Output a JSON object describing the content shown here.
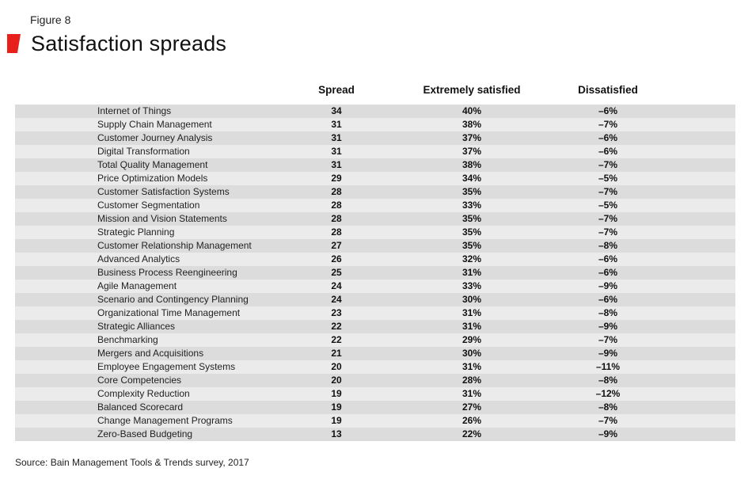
{
  "figure_label": "Figure 8",
  "title": "Satisfaction spreads",
  "accent_color": "#e8201c",
  "source": "Source: Bain Management Tools & Trends survey, 2017",
  "chart_data": {
    "type": "table",
    "title": "Satisfaction spreads",
    "columns": [
      "Spread",
      "Extremely satisfied",
      "Dissatisfied"
    ],
    "rows": [
      {
        "tool": "Internet of Things",
        "spread": "34",
        "extremely_satisfied": "40%",
        "dissatisfied": "–6%"
      },
      {
        "tool": "Supply Chain Management",
        "spread": "31",
        "extremely_satisfied": "38%",
        "dissatisfied": "–7%"
      },
      {
        "tool": "Customer Journey Analysis",
        "spread": "31",
        "extremely_satisfied": "37%",
        "dissatisfied": "–6%"
      },
      {
        "tool": "Digital Transformation",
        "spread": "31",
        "extremely_satisfied": "37%",
        "dissatisfied": "–6%"
      },
      {
        "tool": "Total Quality Management",
        "spread": "31",
        "extremely_satisfied": "38%",
        "dissatisfied": "–7%"
      },
      {
        "tool": "Price Optimization Models",
        "spread": "29",
        "extremely_satisfied": "34%",
        "dissatisfied": "–5%"
      },
      {
        "tool": "Customer Satisfaction Systems",
        "spread": "28",
        "extremely_satisfied": "35%",
        "dissatisfied": "–7%"
      },
      {
        "tool": "Customer Segmentation",
        "spread": "28",
        "extremely_satisfied": "33%",
        "dissatisfied": "–5%"
      },
      {
        "tool": "Mission and Vision Statements",
        "spread": "28",
        "extremely_satisfied": "35%",
        "dissatisfied": "–7%"
      },
      {
        "tool": "Strategic Planning",
        "spread": "28",
        "extremely_satisfied": "35%",
        "dissatisfied": "–7%"
      },
      {
        "tool": "Customer Relationship Management",
        "spread": "27",
        "extremely_satisfied": "35%",
        "dissatisfied": "–8%"
      },
      {
        "tool": "Advanced Analytics",
        "spread": "26",
        "extremely_satisfied": "32%",
        "dissatisfied": "–6%"
      },
      {
        "tool": "Business Process Reengineering",
        "spread": "25",
        "extremely_satisfied": "31%",
        "dissatisfied": "–6%"
      },
      {
        "tool": "Agile Management",
        "spread": "24",
        "extremely_satisfied": "33%",
        "dissatisfied": "–9%"
      },
      {
        "tool": "Scenario and Contingency Planning",
        "spread": "24",
        "extremely_satisfied": "30%",
        "dissatisfied": "–6%"
      },
      {
        "tool": "Organizational Time Management",
        "spread": "23",
        "extremely_satisfied": "31%",
        "dissatisfied": "–8%"
      },
      {
        "tool": "Strategic Alliances",
        "spread": "22",
        "extremely_satisfied": "31%",
        "dissatisfied": "–9%"
      },
      {
        "tool": "Benchmarking",
        "spread": "22",
        "extremely_satisfied": "29%",
        "dissatisfied": "–7%"
      },
      {
        "tool": "Mergers and Acquisitions",
        "spread": "21",
        "extremely_satisfied": "30%",
        "dissatisfied": "–9%"
      },
      {
        "tool": "Employee Engagement Systems",
        "spread": "20",
        "extremely_satisfied": "31%",
        "dissatisfied": "–11%"
      },
      {
        "tool": "Core Competencies",
        "spread": "20",
        "extremely_satisfied": "28%",
        "dissatisfied": "–8%"
      },
      {
        "tool": "Complexity Reduction",
        "spread": "19",
        "extremely_satisfied": "31%",
        "dissatisfied": "–12%"
      },
      {
        "tool": "Balanced Scorecard",
        "spread": "19",
        "extremely_satisfied": "27%",
        "dissatisfied": "–8%"
      },
      {
        "tool": "Change Management Programs",
        "spread": "19",
        "extremely_satisfied": "26%",
        "dissatisfied": "–7%"
      },
      {
        "tool": "Zero-Based Budgeting",
        "spread": "13",
        "extremely_satisfied": "22%",
        "dissatisfied": "–9%"
      }
    ]
  }
}
